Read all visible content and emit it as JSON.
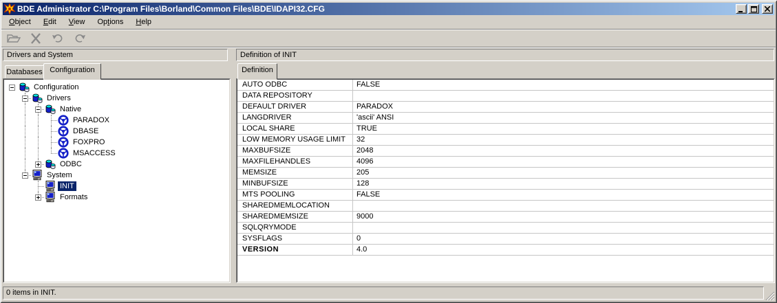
{
  "window": {
    "title": "BDE Administrator  C:\\Program Files\\Borland\\Common Files\\BDE\\IDAPI32.CFG",
    "controls": [
      "minimize",
      "maximize",
      "close"
    ]
  },
  "menu": {
    "items": [
      {
        "label": "Object",
        "underline_index": 0
      },
      {
        "label": "Edit",
        "underline_index": 0
      },
      {
        "label": "View",
        "underline_index": 0
      },
      {
        "label": "Options",
        "underline_index": 2
      },
      {
        "label": "Help",
        "underline_index": 0
      }
    ]
  },
  "toolbar": {
    "icons": [
      "open-folder-icon",
      "delete-x-icon",
      "undo-icon",
      "redo-icon"
    ],
    "disabled": true
  },
  "left_pane": {
    "header": "Drivers and System",
    "tabs": [
      {
        "label": "Databases",
        "active": false
      },
      {
        "label": "Configuration",
        "active": true
      }
    ],
    "tree": [
      {
        "label": "Configuration",
        "icon": "db-stack-icon",
        "level": 0,
        "expander": "minus",
        "root": true,
        "selected": false
      },
      {
        "label": "Drivers",
        "icon": "db-stack-icon",
        "level": 1,
        "expander": "minus",
        "cont": true,
        "guides": []
      },
      {
        "label": "Native",
        "icon": "db-stack-icon",
        "level": 2,
        "expander": "minus",
        "cont": true,
        "guides": [
          1
        ]
      },
      {
        "label": "PARADOX",
        "icon": "driver-wheel-icon",
        "level": 3,
        "expander": null,
        "cont": true,
        "guides": [
          1,
          2
        ]
      },
      {
        "label": "DBASE",
        "icon": "driver-wheel-icon",
        "level": 3,
        "expander": null,
        "cont": true,
        "guides": [
          1,
          2
        ]
      },
      {
        "label": "FOXPRO",
        "icon": "driver-wheel-icon",
        "level": 3,
        "expander": null,
        "cont": true,
        "guides": [
          1,
          2
        ]
      },
      {
        "label": "MSACCESS",
        "icon": "driver-wheel-icon",
        "level": 3,
        "expander": null,
        "cont": false,
        "guides": [
          1,
          2
        ]
      },
      {
        "label": "ODBC",
        "icon": "db-stack-icon",
        "level": 2,
        "expander": "plus",
        "cont": false,
        "guides": [
          1
        ]
      },
      {
        "label": "System",
        "icon": "computer-icon",
        "level": 1,
        "expander": "minus",
        "cont": false,
        "guides": []
      },
      {
        "label": "INIT",
        "icon": "computer-icon",
        "level": 2,
        "expander": null,
        "cont": true,
        "guides": [],
        "selected": true
      },
      {
        "label": "Formats",
        "icon": "computer-icon",
        "level": 2,
        "expander": "plus",
        "cont": false,
        "guides": []
      }
    ]
  },
  "right_pane": {
    "header": "Definition of INIT",
    "tabs": [
      {
        "label": "Definition",
        "active": true
      }
    ],
    "table": {
      "rows": [
        {
          "name": "AUTO ODBC",
          "value": "FALSE",
          "bold": false
        },
        {
          "name": "DATA REPOSITORY",
          "value": "",
          "bold": false
        },
        {
          "name": "DEFAULT DRIVER",
          "value": "PARADOX",
          "bold": false
        },
        {
          "name": "LANGDRIVER",
          "value": "'ascii' ANSI",
          "bold": false
        },
        {
          "name": "LOCAL SHARE",
          "value": "TRUE",
          "bold": false
        },
        {
          "name": "LOW MEMORY USAGE LIMIT",
          "value": "32",
          "bold": false
        },
        {
          "name": "MAXBUFSIZE",
          "value": "2048",
          "bold": false
        },
        {
          "name": "MAXFILEHANDLES",
          "value": "4096",
          "bold": false
        },
        {
          "name": "MEMSIZE",
          "value": "205",
          "bold": false
        },
        {
          "name": "MINBUFSIZE",
          "value": "128",
          "bold": false
        },
        {
          "name": "MTS POOLING",
          "value": "FALSE",
          "bold": false
        },
        {
          "name": "SHAREDMEMLOCATION",
          "value": "",
          "bold": false
        },
        {
          "name": "SHAREDMEMSIZE",
          "value": "9000",
          "bold": false
        },
        {
          "name": "SQLQRYMODE",
          "value": "",
          "bold": false
        },
        {
          "name": "SYSFLAGS",
          "value": "0",
          "bold": false
        },
        {
          "name": "VERSION",
          "value": "4.0",
          "bold": true
        }
      ]
    }
  },
  "statusbar": {
    "text": "0 items in INIT."
  },
  "colors": {
    "chrome": "#d4d0c8",
    "titlebar_start": "#0a246a",
    "titlebar_end": "#a6caf0",
    "selection": "#0a246a",
    "panel_bg": "#ffffff",
    "grid_line": "#c5c5c5",
    "disabled_icon": "#8a8a8a",
    "icon_blue": "#1420c8",
    "icon_cyan": "#00e0e0"
  }
}
